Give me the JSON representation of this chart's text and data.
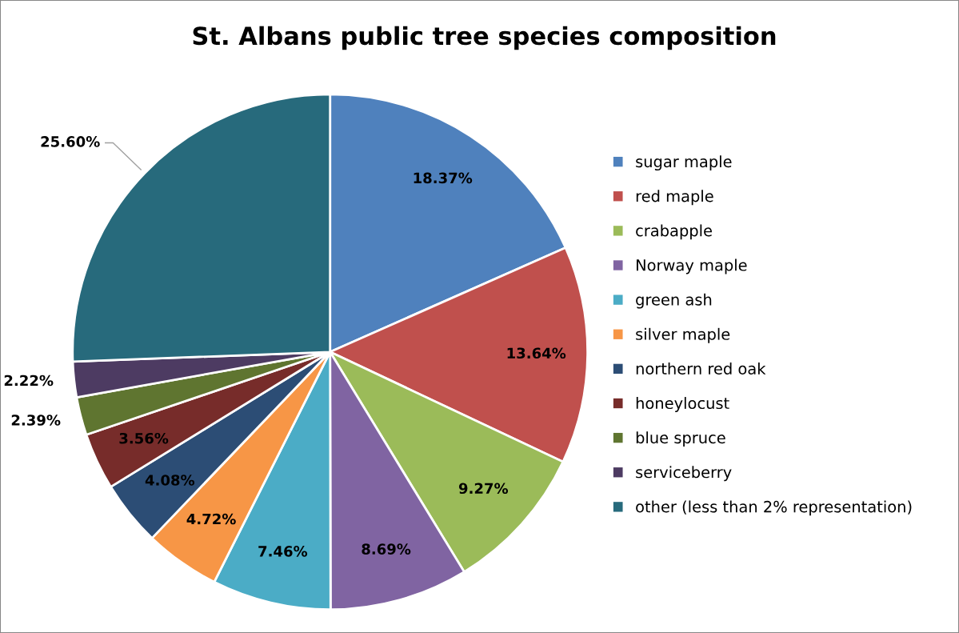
{
  "chart_data": {
    "type": "pie",
    "title": "St. Albans public tree species composition",
    "categories": [
      "sugar maple",
      "red maple",
      "crabapple",
      "Norway maple",
      "green ash",
      "silver maple",
      "northern red oak",
      "honeylocust",
      "blue spruce",
      "serviceberry",
      "other (less than 2% representation)"
    ],
    "values": [
      18.37,
      13.64,
      9.27,
      8.69,
      7.46,
      4.72,
      4.08,
      3.56,
      2.39,
      2.22,
      25.6
    ],
    "value_labels": [
      "18.37%",
      "13.64%",
      "9.27%",
      "8.69%",
      "7.46%",
      "4.72%",
      "4.08%",
      "3.56%",
      "2.39%",
      "2.22%",
      "25.60%"
    ],
    "colors": [
      "#4f81bd",
      "#c0504d",
      "#9bbb59",
      "#8064a2",
      "#4bacc6",
      "#f79646",
      "#2c4d75",
      "#772c2a",
      "#5f7530",
      "#4d3b62",
      "#276a7c"
    ],
    "legend": "right"
  }
}
